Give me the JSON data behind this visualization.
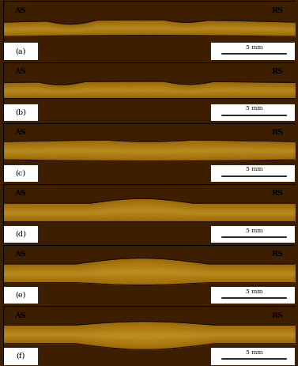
{
  "n_panels": 6,
  "labels": [
    "(a)",
    "(b)",
    "(c)",
    "(d)",
    "(e)",
    "(f)"
  ],
  "as_label": "AS",
  "rs_label": "RS",
  "scale_label": "5 mm",
  "bg_color": "#3d1f00",
  "figure_width": 3.77,
  "figure_height": 4.63,
  "dpi": 100
}
